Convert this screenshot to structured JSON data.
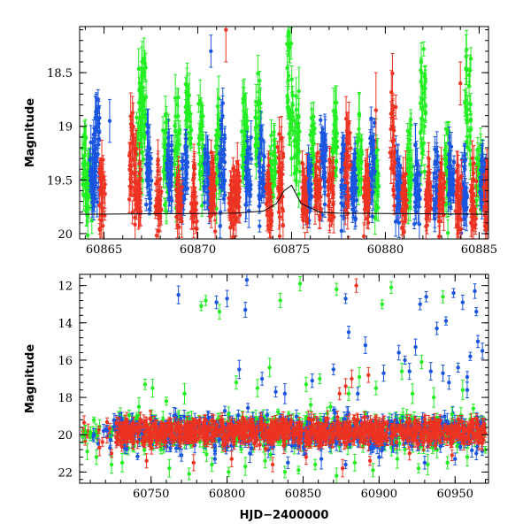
{
  "chart_data": [
    {
      "type": "scatter",
      "title": "",
      "xlabel": "",
      "ylabel": "Magnitude",
      "xlim": [
        60863.7,
        60885.5
      ],
      "ylim": [
        20.05,
        18.07
      ],
      "y_inverted": true,
      "x_ticks": [
        60865,
        60870,
        60875,
        60880,
        60885
      ],
      "x_tick_labels": [
        "60865",
        "60870",
        "60875",
        "60880",
        "60885"
      ],
      "y_ticks": [
        18.5,
        19,
        19.5,
        20
      ],
      "y_tick_labels": [
        "18.5",
        "19",
        "19.5",
        "20"
      ],
      "series": [
        {
          "name": "green",
          "color": "#22ee22",
          "groups": [
            {
              "x": 60864.0,
              "y": 19.45,
              "s": 0.35
            },
            {
              "x": 60864.2,
              "y": 19.6,
              "s": 0.3
            },
            {
              "x": 60866.9,
              "y": 19.1,
              "s": 0.55
            },
            {
              "x": 60867.1,
              "y": 18.8,
              "s": 0.45
            },
            {
              "x": 60868.3,
              "y": 19.35,
              "s": 0.4
            },
            {
              "x": 60868.9,
              "y": 19.2,
              "s": 0.5
            },
            {
              "x": 60869.5,
              "y": 18.9,
              "s": 0.35
            },
            {
              "x": 60870.2,
              "y": 19.25,
              "s": 0.45
            },
            {
              "x": 60871.1,
              "y": 19.3,
              "s": 0.5
            },
            {
              "x": 60872.5,
              "y": 19.15,
              "s": 0.45
            },
            {
              "x": 60873.2,
              "y": 19.1,
              "s": 0.5
            },
            {
              "x": 60874.0,
              "y": 19.35,
              "s": 0.25
            },
            {
              "x": 60874.9,
              "y": 18.75,
              "s": 0.55
            },
            {
              "x": 60875.3,
              "y": 19.15,
              "s": 0.45
            },
            {
              "x": 60876.1,
              "y": 19.25,
              "s": 0.3
            },
            {
              "x": 60877.3,
              "y": 19.2,
              "s": 0.4
            },
            {
              "x": 60878.6,
              "y": 19.3,
              "s": 0.35
            },
            {
              "x": 60879.5,
              "y": 19.5,
              "s": 0.3
            },
            {
              "x": 60881.3,
              "y": 19.4,
              "s": 0.4
            },
            {
              "x": 60882.0,
              "y": 19.0,
              "s": 0.6
            },
            {
              "x": 60883.3,
              "y": 19.45,
              "s": 0.35
            },
            {
              "x": 60884.4,
              "y": 18.9,
              "s": 0.55
            },
            {
              "x": 60885.0,
              "y": 19.5,
              "s": 0.3
            }
          ]
        },
        {
          "name": "blue",
          "color": "#1a55e0",
          "groups": [
            {
              "x": 60864.4,
              "y": 19.5,
              "s": 0.3
            },
            {
              "x": 60864.6,
              "y": 19.2,
              "s": 0.45
            },
            {
              "x": 60867.4,
              "y": 19.4,
              "s": 0.35
            },
            {
              "x": 60868.5,
              "y": 19.45,
              "s": 0.3
            },
            {
              "x": 60869.3,
              "y": 19.45,
              "s": 0.35
            },
            {
              "x": 60870.5,
              "y": 19.5,
              "s": 0.3
            },
            {
              "x": 60871.3,
              "y": 19.3,
              "s": 0.45
            },
            {
              "x": 60872.7,
              "y": 19.5,
              "s": 0.35
            },
            {
              "x": 60873.4,
              "y": 19.45,
              "s": 0.35
            },
            {
              "x": 60875.9,
              "y": 19.6,
              "s": 0.25
            },
            {
              "x": 60876.7,
              "y": 19.35,
              "s": 0.4
            },
            {
              "x": 60877.8,
              "y": 19.5,
              "s": 0.3
            },
            {
              "x": 60878.3,
              "y": 19.6,
              "s": 0.3
            },
            {
              "x": 60879.3,
              "y": 19.4,
              "s": 0.4
            },
            {
              "x": 60880.7,
              "y": 19.6,
              "s": 0.3
            },
            {
              "x": 60881.7,
              "y": 19.5,
              "s": 0.3
            },
            {
              "x": 60882.7,
              "y": 19.55,
              "s": 0.3
            },
            {
              "x": 60883.5,
              "y": 19.5,
              "s": 0.3
            },
            {
              "x": 60884.2,
              "y": 19.6,
              "s": 0.3
            },
            {
              "x": 60885.2,
              "y": 19.55,
              "s": 0.3
            }
          ]
        },
        {
          "name": "red",
          "color": "#ee3322",
          "groups": [
            {
              "x": 60864.9,
              "y": 19.65,
              "s": 0.3
            },
            {
              "x": 60866.5,
              "y": 19.45,
              "s": 0.55
            },
            {
              "x": 60866.8,
              "y": 19.6,
              "s": 0.35
            },
            {
              "x": 60867.9,
              "y": 19.65,
              "s": 0.3
            },
            {
              "x": 60869.0,
              "y": 19.7,
              "s": 0.25
            },
            {
              "x": 60869.8,
              "y": 19.7,
              "s": 0.3
            },
            {
              "x": 60870.8,
              "y": 19.65,
              "s": 0.35
            },
            {
              "x": 60871.8,
              "y": 19.7,
              "s": 0.3
            },
            {
              "x": 60872.1,
              "y": 19.65,
              "s": 0.3
            },
            {
              "x": 60873.8,
              "y": 19.7,
              "s": 0.3
            },
            {
              "x": 60874.4,
              "y": 19.55,
              "s": 0.4
            },
            {
              "x": 60875.7,
              "y": 19.7,
              "s": 0.3
            },
            {
              "x": 60876.4,
              "y": 19.6,
              "s": 0.3
            },
            {
              "x": 60877.1,
              "y": 19.65,
              "s": 0.3
            },
            {
              "x": 60878.0,
              "y": 19.5,
              "s": 0.5
            },
            {
              "x": 60879.0,
              "y": 19.7,
              "s": 0.3
            },
            {
              "x": 60880.4,
              "y": 19.2,
              "s": 0.6
            },
            {
              "x": 60881.0,
              "y": 19.7,
              "s": 0.3
            },
            {
              "x": 60882.3,
              "y": 19.65,
              "s": 0.3
            },
            {
              "x": 60883.0,
              "y": 19.7,
              "s": 0.3
            },
            {
              "x": 60883.9,
              "y": 19.7,
              "s": 0.3
            },
            {
              "x": 60884.7,
              "y": 19.65,
              "s": 0.3
            },
            {
              "x": 60885.4,
              "y": 19.7,
              "s": 0.3
            }
          ]
        }
      ],
      "isolated_points": [
        {
          "series": "red",
          "x": 60871.5,
          "y": 18.1,
          "err": 0.3
        },
        {
          "series": "blue",
          "x": 60870.7,
          "y": 18.3,
          "err": 0.15
        },
        {
          "series": "red",
          "x": 60879.5,
          "y": 18.85,
          "err": 0.35
        },
        {
          "series": "red",
          "x": 60884.0,
          "y": 18.6,
          "err": 0.2
        },
        {
          "series": "blue",
          "x": 60865.3,
          "y": 18.95,
          "err": 0.2
        }
      ],
      "model_curve": {
        "x": [
          60863.7,
          60872.0,
          60873.5,
          60874.2,
          60874.6,
          60875.0,
          60875.5,
          60876.5,
          60877.5,
          60885.5
        ],
        "y": [
          19.82,
          19.81,
          19.79,
          19.72,
          19.6,
          19.55,
          19.72,
          19.8,
          19.81,
          19.82
        ]
      }
    },
    {
      "type": "scatter",
      "title": "",
      "xlabel": "HJD−2400000",
      "ylabel": "Magnitude",
      "xlim": [
        60703,
        60972
      ],
      "ylim": [
        22.6,
        11.4
      ],
      "y_inverted": true,
      "x_ticks": [
        60750,
        60800,
        60850,
        60900,
        60950
      ],
      "x_tick_labels": [
        "60750",
        "60800",
        "60850",
        "60900",
        "60950"
      ],
      "y_ticks": [
        12,
        14,
        16,
        18,
        20,
        22
      ],
      "y_tick_labels": [
        "12",
        "14",
        "16",
        "18",
        "20",
        "22"
      ],
      "series": [
        {
          "name": "green",
          "color": "#22ee22",
          "outliers": [
            [
              60742,
              18.5
            ],
            [
              60746,
              17.3
            ],
            [
              60751,
              17.5
            ],
            [
              60760,
              18.2
            ],
            [
              60772,
              17.8
            ],
            [
              60783,
              13.1
            ],
            [
              60786,
              12.8
            ],
            [
              60795,
              13.4
            ],
            [
              60801,
              18.9
            ],
            [
              60806,
              17.2
            ],
            [
              60820,
              17.5
            ],
            [
              60828,
              16.4
            ],
            [
              60835,
              12.8
            ],
            [
              60848,
              11.9
            ],
            [
              60852,
              17.3
            ],
            [
              60855,
              18.4
            ],
            [
              60861,
              17.0
            ],
            [
              60868,
              18.5
            ],
            [
              60872,
              12.2
            ],
            [
              60880,
              17.8
            ],
            [
              60887,
              16.9
            ],
            [
              60898,
              17.5
            ],
            [
              60902,
              13.0
            ],
            [
              60908,
              12.1
            ],
            [
              60915,
              16.6
            ],
            [
              60922,
              17.8
            ],
            [
              60928,
              16.1
            ],
            [
              60936,
              18.0
            ],
            [
              60942,
              12.6
            ],
            [
              60948,
              18.9
            ],
            [
              60955,
              17.6
            ],
            [
              60962,
              18.6
            ],
            [
              60708,
              20.9
            ],
            [
              60714,
              21.2
            ],
            [
              60731,
              21.5
            ],
            [
              60762,
              21.8
            ],
            [
              60775,
              22.1
            ],
            [
              60790,
              21.6
            ],
            [
              60812,
              21.7
            ],
            [
              60825,
              21.4
            ],
            [
              60838,
              22.0
            ],
            [
              60858,
              21.6
            ],
            [
              60872,
              22.2
            ],
            [
              60884,
              21.5
            ],
            [
              60896,
              21.9
            ],
            [
              60912,
              21.3
            ],
            [
              60926,
              21.8
            ],
            [
              60945,
              21.5
            ],
            [
              60958,
              21.2
            ],
            [
              60724,
              21.6
            ],
            [
              60801,
              22.0
            ],
            [
              60847,
              21.9
            ],
            [
              60932,
              21.6
            ]
          ]
        },
        {
          "name": "blue",
          "color": "#1a55e0",
          "outliers": [
            [
              60768,
              12.5
            ],
            [
              60793,
              12.9
            ],
            [
              60800,
              12.7
            ],
            [
              60808,
              16.5
            ],
            [
              60813,
              11.7
            ],
            [
              60812,
              13.3
            ],
            [
              60823,
              17.0
            ],
            [
              60832,
              17.7
            ],
            [
              60838,
              17.8
            ],
            [
              60856,
              17.1
            ],
            [
              60870,
              16.5
            ],
            [
              60878,
              12.7
            ],
            [
              60880,
              14.5
            ],
            [
              60886,
              17.8
            ],
            [
              60891,
              15.2
            ],
            [
              60903,
              16.7
            ],
            [
              60913,
              15.6
            ],
            [
              60920,
              16.6
            ],
            [
              60924,
              15.3
            ],
            [
              60927,
              13.0
            ],
            [
              60931,
              12.6
            ],
            [
              60934,
              16.6
            ],
            [
              60938,
              14.3
            ],
            [
              60942,
              16.7
            ],
            [
              60944,
              13.9
            ],
            [
              60946,
              17.2
            ],
            [
              60949,
              12.4
            ],
            [
              60955,
              12.9
            ],
            [
              60958,
              16.9
            ],
            [
              60963,
              12.3
            ],
            [
              60964,
              13.4
            ],
            [
              60965,
              15.0
            ],
            [
              60968,
              15.5
            ],
            [
              60960,
              15.8
            ],
            [
              60917,
              16.0
            ],
            [
              60952,
              16.4
            ],
            [
              60958,
              17.6
            ],
            [
              60770,
              21.1
            ],
            [
              60792,
              21.3
            ],
            [
              60815,
              21.0
            ],
            [
              60840,
              21.5
            ],
            [
              60862,
              21.3
            ],
            [
              60878,
              21.6
            ],
            [
              60900,
              21.2
            ],
            [
              60930,
              21.5
            ],
            [
              60950,
              21.3
            ],
            [
              60964,
              21.0
            ]
          ]
        },
        {
          "name": "red",
          "color": "#ee3322",
          "outliers": [
            [
              60885,
              12.0
            ],
            [
              60878,
              17.4
            ],
            [
              60882,
              17.0
            ],
            [
              60893,
              16.8
            ],
            [
              60874,
              17.8
            ],
            [
              60716,
              20.7
            ],
            [
              60724,
              21.0
            ],
            [
              60747,
              21.4
            ],
            [
              60778,
              21.5
            ],
            [
              60803,
              21.3
            ],
            [
              60830,
              21.6
            ],
            [
              60852,
              21.2
            ],
            [
              60876,
              21.8
            ],
            [
              60894,
              21.4
            ],
            [
              60920,
              21.0
            ],
            [
              60948,
              21.1
            ]
          ]
        }
      ],
      "baseline": {
        "x_start": 60727,
        "x_end": 60970,
        "y_center": 19.85,
        "scatter": 0.45
      },
      "early_points": {
        "x_start": 60705,
        "x_end": 60727,
        "y_center": 19.9,
        "scatter": 0.5
      }
    }
  ]
}
